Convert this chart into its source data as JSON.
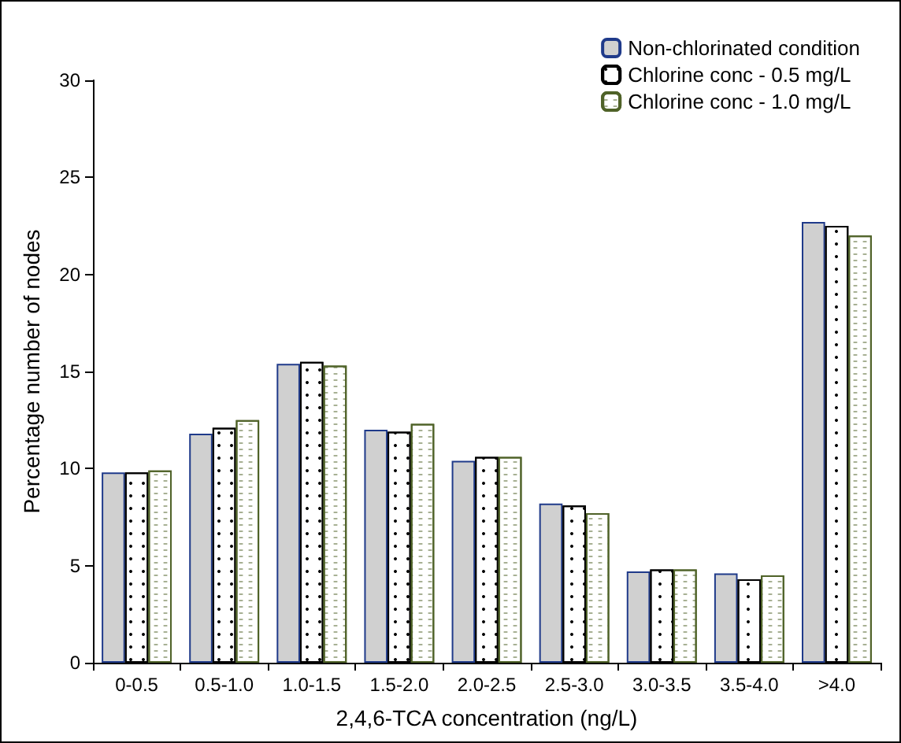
{
  "chart_data": {
    "type": "bar",
    "xlabel": "2,4,6-TCA concentration (ng/L)",
    "ylabel": "Percentage number of nodes",
    "categories": [
      "0-0.5",
      "0.5-1.0",
      "1.0-1.5",
      "1.5-2.0",
      "2.0-2.5",
      "2.5-3.0",
      "3.0-3.5",
      "3.5-4.0",
      ">4.0"
    ],
    "series": [
      {
        "name": "Non-chlorinated condition",
        "color": "#d0d0d0",
        "values": [
          9.8,
          11.8,
          15.4,
          12.0,
          10.4,
          8.2,
          4.7,
          4.6,
          22.7
        ]
      },
      {
        "name": "Chlorine conc - 0.5 mg/L",
        "color": "#000000",
        "values": [
          9.8,
          12.1,
          15.5,
          11.9,
          10.6,
          8.1,
          4.8,
          4.3,
          22.5
        ]
      },
      {
        "name": "Chlorine conc - 1.0 mg/L",
        "color": "#4f6228",
        "values": [
          9.9,
          12.5,
          15.3,
          12.3,
          10.6,
          7.7,
          4.8,
          4.5,
          22.0
        ]
      }
    ],
    "ylim": [
      0,
      30
    ],
    "yticks": [
      0,
      5,
      10,
      15,
      20,
      25,
      30
    ],
    "grid": false,
    "legend": "top right"
  }
}
